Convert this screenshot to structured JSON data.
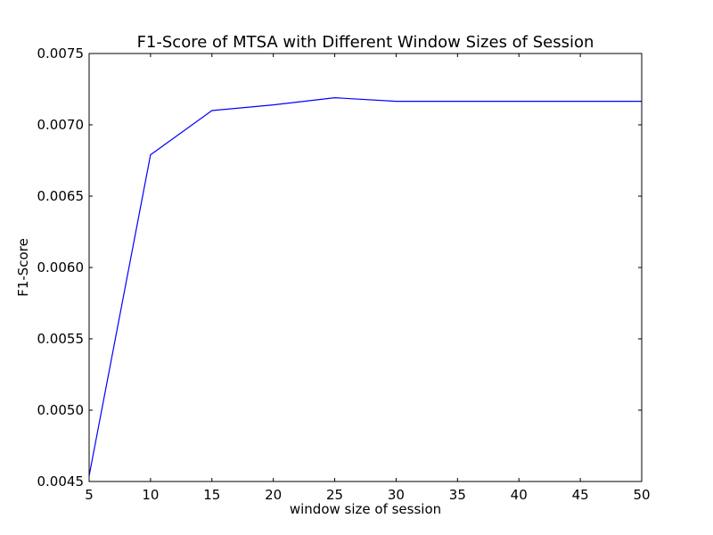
{
  "chart_data": {
    "type": "line",
    "title": "F1-Score of MTSA with Different Window Sizes of Session",
    "xlabel": "window size of session",
    "ylabel": "F1-Score",
    "xlim": [
      5,
      50
    ],
    "ylim": [
      0.0045,
      0.0075
    ],
    "x_ticks": [
      5,
      10,
      15,
      20,
      25,
      30,
      35,
      40,
      45,
      50
    ],
    "x_tick_labels": [
      "5",
      "10",
      "15",
      "20",
      "25",
      "30",
      "35",
      "40",
      "45",
      "50"
    ],
    "y_ticks": [
      0.0045,
      0.005,
      0.0055,
      0.006,
      0.0065,
      0.007,
      0.0075
    ],
    "y_tick_labels": [
      "0.0045",
      "0.0050",
      "0.0055",
      "0.0060",
      "0.0065",
      "0.0070",
      "0.0075"
    ],
    "grid": false,
    "series": [
      {
        "color": "#0000ff",
        "x": [
          5,
          10,
          15,
          20,
          25,
          30,
          35,
          40,
          45,
          50
        ],
        "y": [
          0.00454,
          0.00679,
          0.0071,
          0.00714,
          0.00719,
          0.007165,
          0.007165,
          0.007165,
          0.007165,
          0.007165
        ]
      }
    ]
  }
}
